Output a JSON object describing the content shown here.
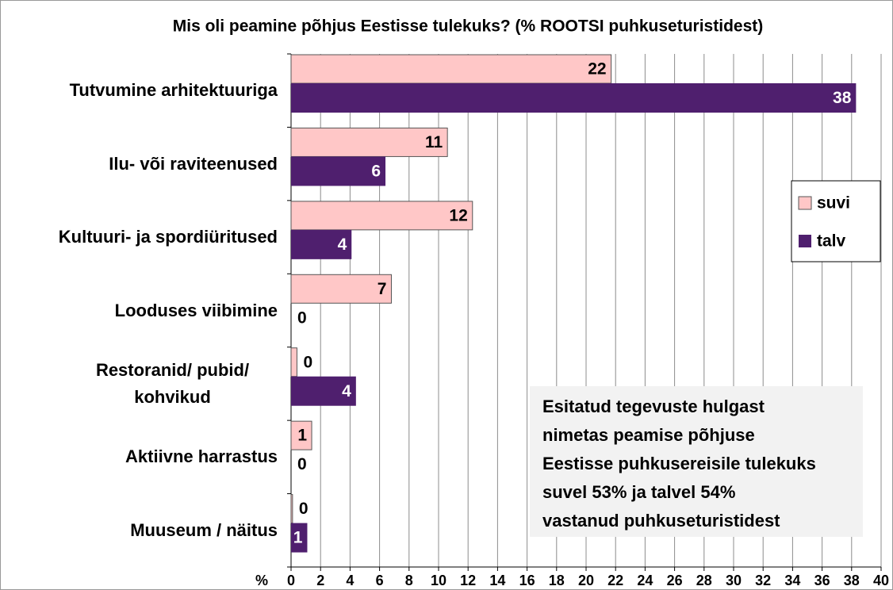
{
  "chart_data": {
    "type": "hbar",
    "title": "Mis oli peamine põhjus Eestisse tulekuks? (% ROOTSI puhkuseturistidest)",
    "categories": [
      "Tutvumine arhitektuuriga",
      "Ilu- või raviteenused",
      "Kultuuri- ja spordiüritused",
      "Looduses viibimine",
      "Restoranid/ pubid/ kohvikud",
      "Aktiivne harrastus",
      "Muuseum / näitus"
    ],
    "series": [
      {
        "name": "suvi",
        "color": "#ffc7c7",
        "label_color": "#000000",
        "values": [
          21.7,
          10.6,
          12.3,
          6.8,
          0.4,
          1.4,
          0.1
        ],
        "value_labels": [
          "22",
          "11",
          "12",
          "7",
          "0",
          "1",
          "0"
        ]
      },
      {
        "name": "talv",
        "color": "#4f1f6e",
        "label_color": "#ffffff",
        "values": [
          38.3,
          6.4,
          4.1,
          0,
          4.4,
          0,
          1.1
        ],
        "value_labels": [
          "38",
          "6",
          "4",
          "0",
          "4",
          "0",
          "1"
        ]
      }
    ],
    "xlabel": "%",
    "xlim": [
      0,
      40
    ],
    "xticks": [
      0,
      2,
      4,
      6,
      8,
      10,
      12,
      14,
      16,
      18,
      20,
      22,
      24,
      26,
      28,
      30,
      32,
      34,
      36,
      38,
      40
    ],
    "grid": true,
    "legend": "right",
    "annotation": [
      "Esitatud tegevuste hulgast",
      "nimetas peamise põhjuse",
      "Eestisse puhkusereisile tulekuks",
      "suvel 53% ja talvel 54%",
      "vastanud puhkuseturistidest"
    ]
  }
}
